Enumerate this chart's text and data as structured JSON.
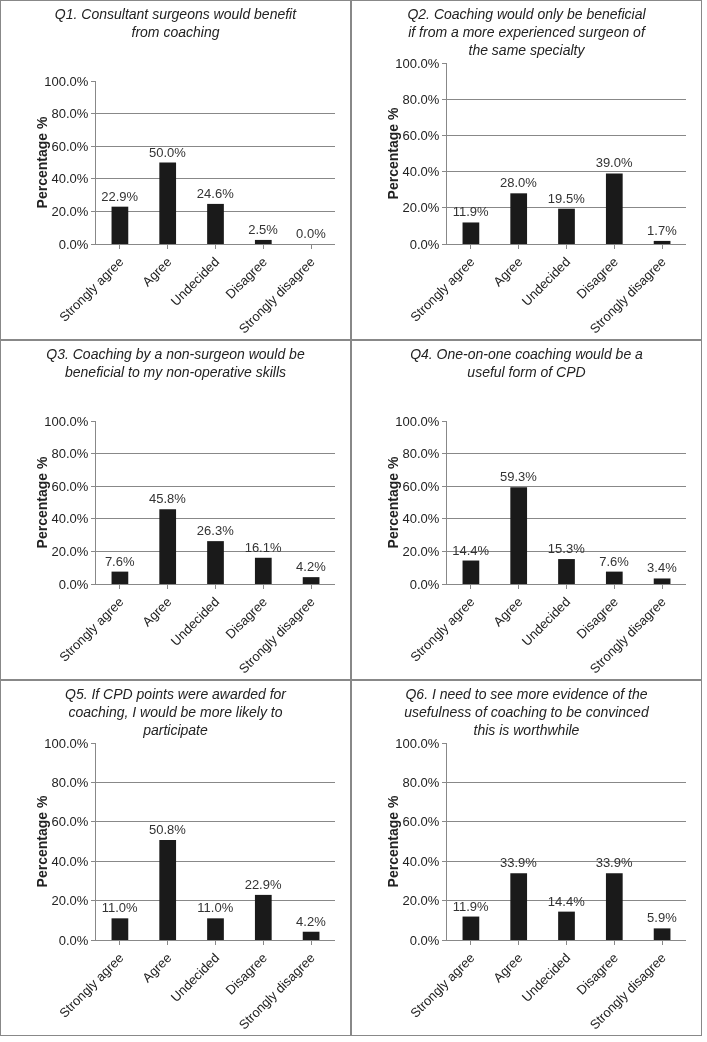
{
  "chart_data": [
    {
      "type": "bar",
      "title": "Q1. Consultant surgeons would benefit from coaching",
      "ylabel": "Percentage %",
      "categories": [
        "Strongly agree",
        "Agree",
        "Undecided",
        "Disagree",
        "Strongly disagree"
      ],
      "values": [
        22.9,
        50.0,
        24.6,
        2.5,
        0.0
      ],
      "value_labels": [
        "22.9%",
        "50.0%",
        "24.6%",
        "2.5%",
        "0.0%"
      ],
      "color": "#1a1a1a",
      "ylim": [
        0,
        100
      ],
      "yticks": [
        {
          "value": 0,
          "label": "0.0%"
        },
        {
          "value": 20,
          "label": "20.0%"
        },
        {
          "value": 40,
          "label": "40.0%"
        },
        {
          "value": 60,
          "label": "60.0%"
        },
        {
          "value": 80,
          "label": "80.0%"
        },
        {
          "value": 100,
          "label": "100.0%"
        }
      ],
      "grid": "y"
    },
    {
      "type": "bar",
      "title": "Q2. Coaching would only be beneficial if from a more experienced surgeon of the same specialty",
      "ylabel": "Percentage %",
      "categories": [
        "Strongly agree",
        "Agree",
        "Undecided",
        "Disagree",
        "Strongly disagree"
      ],
      "values": [
        11.9,
        28.0,
        19.5,
        39.0,
        1.7
      ],
      "value_labels": [
        "11.9%",
        "28.0%",
        "19.5%",
        "39.0%",
        "1.7%"
      ],
      "color": "#1a1a1a",
      "ylim": [
        0,
        100
      ],
      "yticks": [
        {
          "value": 0,
          "label": "0.0%"
        },
        {
          "value": 20,
          "label": "20.0%"
        },
        {
          "value": 40,
          "label": "40.0%"
        },
        {
          "value": 60,
          "label": "60.0%"
        },
        {
          "value": 80,
          "label": "80.0%"
        },
        {
          "value": 100,
          "label": "100.0%"
        }
      ],
      "grid": "y"
    },
    {
      "type": "bar",
      "title": "Q3. Coaching by a non-surgeon would be beneficial to my non-operative skills",
      "ylabel": "Percentage %",
      "categories": [
        "Strongly agree",
        "Agree",
        "Undecided",
        "Disagree",
        "Strongly disagree"
      ],
      "values": [
        7.6,
        45.8,
        26.3,
        16.1,
        4.2
      ],
      "value_labels": [
        "7.6%",
        "45.8%",
        "26.3%",
        "16.1%",
        "4.2%"
      ],
      "color": "#1a1a1a",
      "ylim": [
        0,
        100
      ],
      "yticks": [
        {
          "value": 0,
          "label": "0.0%"
        },
        {
          "value": 20,
          "label": "20.0%"
        },
        {
          "value": 40,
          "label": "40.0%"
        },
        {
          "value": 60,
          "label": "60.0%"
        },
        {
          "value": 80,
          "label": "80.0%"
        },
        {
          "value": 100,
          "label": "100.0%"
        }
      ],
      "grid": "y"
    },
    {
      "type": "bar",
      "title": "Q4. One-on-one coaching would be a useful form of CPD",
      "ylabel": "Percentage %",
      "categories": [
        "Strongly agree",
        "Agree",
        "Undecided",
        "Disagree",
        "Strongly disagree"
      ],
      "values": [
        14.4,
        59.3,
        15.3,
        7.6,
        3.4
      ],
      "value_labels": [
        "14.4%",
        "59.3%",
        "15.3%",
        "7.6%",
        "3.4%"
      ],
      "color": "#1a1a1a",
      "ylim": [
        0,
        100
      ],
      "yticks": [
        {
          "value": 0,
          "label": "0.0%"
        },
        {
          "value": 20,
          "label": "20.0%"
        },
        {
          "value": 40,
          "label": "40.0%"
        },
        {
          "value": 60,
          "label": "60.0%"
        },
        {
          "value": 80,
          "label": "80.0%"
        },
        {
          "value": 100,
          "label": "100.0%"
        }
      ],
      "grid": "y"
    },
    {
      "type": "bar",
      "title": "Q5. If CPD points were awarded for coaching, I would be more likely to participate",
      "ylabel": "Percentage %",
      "categories": [
        "Strongly agree",
        "Agree",
        "Undecided",
        "Disagree",
        "Strongly disagree"
      ],
      "values": [
        11.0,
        50.8,
        11.0,
        22.9,
        4.2
      ],
      "value_labels": [
        "11.0%",
        "50.8%",
        "11.0%",
        "22.9%",
        "4.2%"
      ],
      "color": "#1a1a1a",
      "ylim": [
        0,
        100
      ],
      "yticks": [
        {
          "value": 0,
          "label": "0.0%"
        },
        {
          "value": 20,
          "label": "20.0%"
        },
        {
          "value": 40,
          "label": "40.0%"
        },
        {
          "value": 60,
          "label": "60.0%"
        },
        {
          "value": 80,
          "label": "80.0%"
        },
        {
          "value": 100,
          "label": "100.0%"
        }
      ],
      "grid": "y"
    },
    {
      "type": "bar",
      "title": "Q6. I need to see more evidence of the usefulness of coaching to be convinced this is worthwhile",
      "ylabel": "Percentage %",
      "categories": [
        "Strongly agree",
        "Agree",
        "Undecided",
        "Disagree",
        "Strongly disagree"
      ],
      "values": [
        11.9,
        33.9,
        14.4,
        33.9,
        5.9
      ],
      "value_labels": [
        "11.9%",
        "33.9%",
        "14.4%",
        "33.9%",
        "5.9%"
      ],
      "color": "#1a1a1a",
      "ylim": [
        0,
        100
      ],
      "yticks": [
        {
          "value": 0,
          "label": "0.0%"
        },
        {
          "value": 20,
          "label": "20.0%"
        },
        {
          "value": 40,
          "label": "40.0%"
        },
        {
          "value": 60,
          "label": "60.0%"
        },
        {
          "value": 80,
          "label": "80.0%"
        },
        {
          "value": 100,
          "label": "100.0%"
        }
      ],
      "grid": "y"
    }
  ]
}
